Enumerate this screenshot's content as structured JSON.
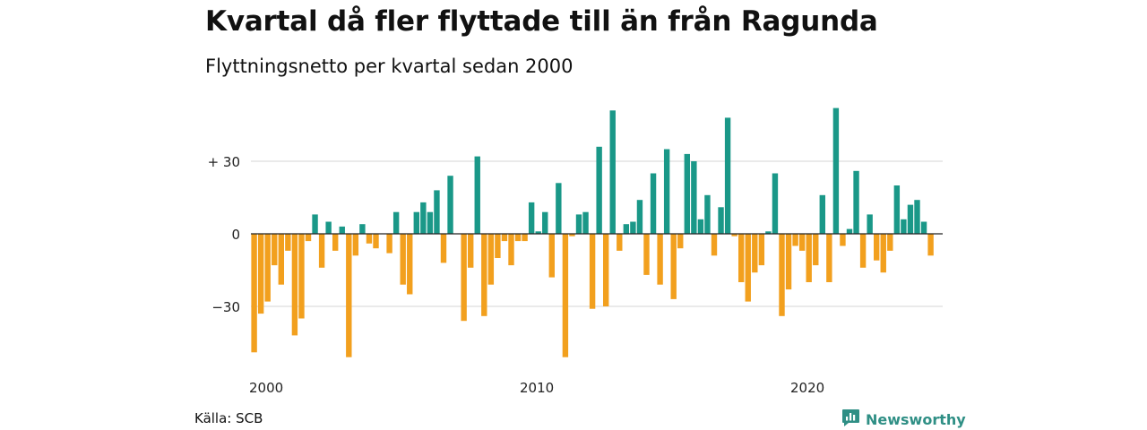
{
  "title": "Kvartal då fler flyttade till än från Ragunda",
  "subtitle": "Flyttningsnetto per kvartal sedan 2000",
  "source": "Källa: SCB",
  "brand": {
    "name": "Newsworthy",
    "icon": "newsworthy-logo-icon"
  },
  "colors": {
    "positive": "#1a9888",
    "negative": "#f2a01e",
    "grid": "#dddddd",
    "baseline": "#222222",
    "brand": "#2f8f85"
  },
  "chart_data": {
    "type": "bar",
    "x_start": "2000 Q1",
    "period": "quarter",
    "ylim": [
      -53,
      52
    ],
    "yticks": [
      -30,
      0,
      30
    ],
    "ytick_labels": [
      "−30",
      "0",
      "+ 30"
    ],
    "xticks": [
      "2000",
      "2010",
      "2020"
    ],
    "grid": true,
    "values": [
      -49,
      -33,
      -28,
      -13,
      -21,
      -7,
      -42,
      -35,
      -3,
      8,
      -14,
      5,
      -7,
      3,
      -51,
      -9,
      4,
      -4,
      -6,
      0,
      -8,
      9,
      -21,
      -25,
      9,
      13,
      9,
      18,
      -12,
      24,
      0,
      -36,
      -14,
      32,
      -34,
      -21,
      -10,
      -3,
      -13,
      -3,
      -3,
      13,
      1,
      9,
      -18,
      21,
      -51,
      -1,
      8,
      9,
      -31,
      36,
      -30,
      51,
      -7,
      4,
      5,
      14,
      -17,
      25,
      -21,
      35,
      -27,
      -6,
      33,
      30,
      6,
      16,
      -9,
      11,
      48,
      -1,
      -20,
      -28,
      -16,
      -13,
      1,
      25,
      -34,
      -23,
      -5,
      -7,
      -20,
      -13,
      16,
      -20,
      52,
      -5,
      2,
      26,
      -14,
      8,
      -11,
      -16,
      -7,
      20,
      6,
      12,
      14,
      5,
      -9
    ]
  }
}
